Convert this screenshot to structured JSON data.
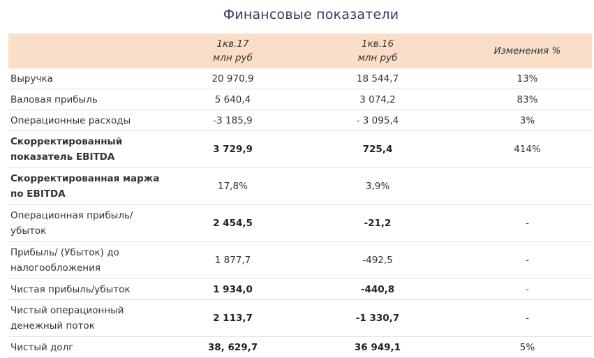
{
  "title": "Финансовые показатели",
  "header": {
    "col_q17_line1": "1кв.17",
    "col_q17_line2": "млн руб",
    "col_q16_line1": "1кв.16",
    "col_q16_line2": "млн руб",
    "col_change": "Изменения %"
  },
  "rows": [
    {
      "label_l1": "Выручка",
      "label_l2": "",
      "q17": "20 970,9",
      "q16": "18 544,7",
      "change": "13%"
    },
    {
      "label_l1": "Валовая прибыль",
      "label_l2": "",
      "q17": "5 640,4",
      "q16": "3 074,2",
      "change": "83%"
    },
    {
      "label_l1": "Операционные расходы",
      "label_l2": "",
      "q17": "-3 185,9",
      "q16": "- 3 095,4",
      "change": "3%"
    },
    {
      "label_l1": "Скорректированный",
      "label_l2": "показатель EBITDA",
      "q17": "3 729,9",
      "q16": "725,4",
      "change": "414%"
    },
    {
      "label_l1": "Скорректированная маржа",
      "label_l2": "по EBITDA",
      "q17": "17,8%",
      "q16": "3,9%",
      "change": ""
    },
    {
      "label_l1": "Операционная прибыль/",
      "label_l2": "убыток",
      "q17": "2 454,5",
      "q16": "-21,2",
      "change": "-"
    },
    {
      "label_l1": "Прибыль/ (Убыток) до",
      "label_l2": "налогообложения",
      "q17": "1 877,7",
      "q16": "-492,5",
      "change": "-"
    },
    {
      "label_l1": "Чистая прибыль/убыток",
      "label_l2": "",
      "q17": "1 934,0",
      "q16": "-440,8",
      "change": "-"
    },
    {
      "label_l1": "Чистый операционный",
      "label_l2": "денежный поток",
      "q17": "2 113,7",
      "q16": "-1 330,7",
      "change": "-"
    },
    {
      "label_l1": "Чистый долг",
      "label_l2": "",
      "q17": "38, 629,7",
      "q16": "36 949,1",
      "change": "5%"
    }
  ]
}
